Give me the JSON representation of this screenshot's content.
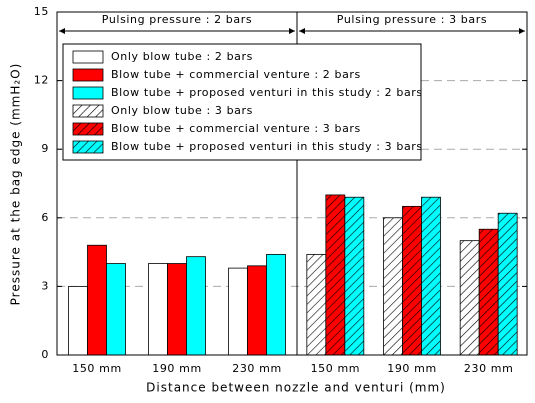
{
  "chart_data": {
    "type": "bar",
    "panels": [
      "Pulsing pressure : 2 bars",
      "Pulsing pressure : 3 bars"
    ],
    "categories": [
      "150 mm",
      "190 mm",
      "230 mm",
      "150 mm",
      "190 mm",
      "230 mm"
    ],
    "x_label": "Distance between nozzle and venturi (mm)",
    "y_label": "Pressure at the bag edge (mmH₂O)",
    "ylim": [
      0,
      15
    ],
    "yticks": [
      0,
      3,
      6,
      9,
      12,
      15
    ],
    "grid": true,
    "legend": "upper left",
    "series": [
      {
        "name": "Only blow tube : 2 bars",
        "color": "#ffffff",
        "pattern": "solid",
        "values": [
          3.0,
          4.0,
          3.8,
          null,
          null,
          null
        ]
      },
      {
        "name": "Blow tube + commercial venture : 2 bars",
        "color": "#ff0000",
        "pattern": "solid",
        "values": [
          4.8,
          4.0,
          3.9,
          null,
          null,
          null
        ]
      },
      {
        "name": "Blow tube + proposed venturi in this study : 2 bars",
        "color": "#00ffff",
        "pattern": "solid",
        "values": [
          4.0,
          4.3,
          4.4,
          null,
          null,
          null
        ]
      },
      {
        "name": "Only blow tube : 3 bars",
        "color": "#ffffff",
        "pattern": "hatch",
        "values": [
          null,
          null,
          null,
          4.4,
          6.0,
          5.0
        ]
      },
      {
        "name": "Blow tube + commercial venture : 3 bars",
        "color": "#ff0000",
        "pattern": "hatch",
        "values": [
          null,
          null,
          null,
          7.0,
          6.5,
          5.5
        ]
      },
      {
        "name": "Blow tube + proposed venturi in this study : 3 bars",
        "color": "#00ffff",
        "pattern": "hatch",
        "values": [
          null,
          null,
          null,
          6.9,
          6.9,
          6.2
        ]
      }
    ]
  }
}
